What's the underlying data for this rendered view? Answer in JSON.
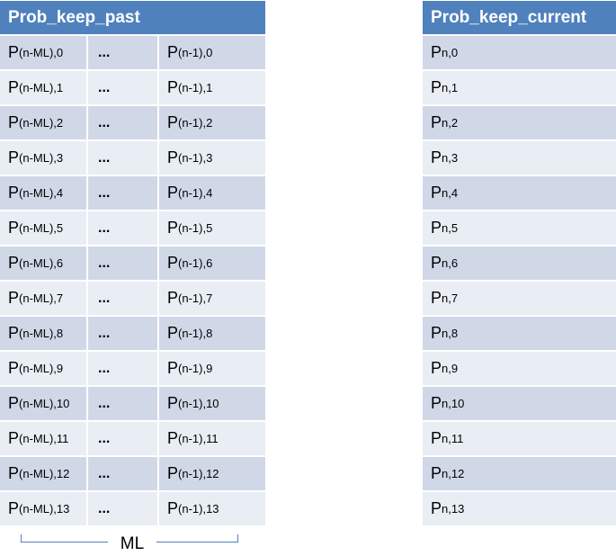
{
  "past_table": {
    "header": "Prob_keep_past",
    "ellipsis": "...",
    "rows": [
      {
        "c1_base": "P",
        "c1_sub": "(n-ML),0",
        "c3_base": "P",
        "c3_sub": "(n-1),0"
      },
      {
        "c1_base": "P",
        "c1_sub": "(n-ML),1",
        "c3_base": "P",
        "c3_sub": "(n-1),1"
      },
      {
        "c1_base": "P",
        "c1_sub": "(n-ML),2",
        "c3_base": "P",
        "c3_sub": "(n-1),2"
      },
      {
        "c1_base": "P",
        "c1_sub": "(n-ML),3",
        "c3_base": "P",
        "c3_sub": "(n-1),3"
      },
      {
        "c1_base": "P",
        "c1_sub": "(n-ML),4",
        "c3_base": "P",
        "c3_sub": "(n-1),4"
      },
      {
        "c1_base": "P",
        "c1_sub": "(n-ML),5",
        "c3_base": "P",
        "c3_sub": "(n-1),5"
      },
      {
        "c1_base": "P",
        "c1_sub": "(n-ML),6",
        "c3_base": "P",
        "c3_sub": "(n-1),6"
      },
      {
        "c1_base": "P",
        "c1_sub": "(n-ML),7",
        "c3_base": "P",
        "c3_sub": "(n-1),7"
      },
      {
        "c1_base": "P",
        "c1_sub": "(n-ML),8",
        "c3_base": "P",
        "c3_sub": "(n-1),8"
      },
      {
        "c1_base": "P",
        "c1_sub": "(n-ML),9",
        "c3_base": "P",
        "c3_sub": "(n-1),9"
      },
      {
        "c1_base": "P",
        "c1_sub": "(n-ML),10",
        "c3_base": "P",
        "c3_sub": "(n-1),10"
      },
      {
        "c1_base": "P",
        "c1_sub": "(n-ML),11",
        "c3_base": "P",
        "c3_sub": "(n-1),11"
      },
      {
        "c1_base": "P",
        "c1_sub": "(n-ML),12",
        "c3_base": "P",
        "c3_sub": "(n-1),12"
      },
      {
        "c1_base": "P",
        "c1_sub": "(n-ML),13",
        "c3_base": "P",
        "c3_sub": "(n-1),13"
      }
    ]
  },
  "current_table": {
    "header": "Prob_keep_current",
    "rows": [
      {
        "base": "P",
        "sub": "n,0"
      },
      {
        "base": "P",
        "sub": "n,1"
      },
      {
        "base": "P",
        "sub": "n,2"
      },
      {
        "base": "P",
        "sub": "n,3"
      },
      {
        "base": "P",
        "sub": "n,4"
      },
      {
        "base": "P",
        "sub": "n,5"
      },
      {
        "base": "P",
        "sub": "n,6"
      },
      {
        "base": "P",
        "sub": "n,7"
      },
      {
        "base": "P",
        "sub": "n,8"
      },
      {
        "base": "P",
        "sub": "n,9"
      },
      {
        "base": "P",
        "sub": "n,10"
      },
      {
        "base": "P",
        "sub": "n,11"
      },
      {
        "base": "P",
        "sub": "n,12"
      },
      {
        "base": "P",
        "sub": "n,13"
      }
    ]
  },
  "brace_label": "ML",
  "colors": {
    "header_bg": "#4f81bd",
    "row_odd": "#d0d8e8",
    "row_even": "#e9edf4",
    "brace": "#4f81bd"
  }
}
